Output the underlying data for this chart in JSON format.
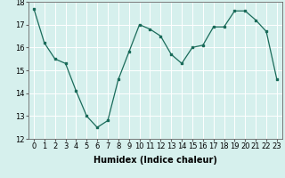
{
  "x": [
    0,
    1,
    2,
    3,
    4,
    5,
    6,
    7,
    8,
    9,
    10,
    11,
    12,
    13,
    14,
    15,
    16,
    17,
    18,
    19,
    20,
    21,
    22,
    23
  ],
  "y": [
    17.7,
    16.2,
    15.5,
    15.3,
    14.1,
    13.0,
    12.5,
    12.8,
    14.6,
    15.8,
    17.0,
    16.8,
    16.5,
    15.7,
    15.3,
    16.0,
    16.1,
    16.9,
    16.9,
    17.6,
    17.6,
    17.2,
    16.7,
    14.6
  ],
  "xlabel": "Humidex (Indice chaleur)",
  "ylim": [
    12,
    18
  ],
  "xlim": [
    -0.5,
    23.5
  ],
  "yticks": [
    12,
    13,
    14,
    15,
    16,
    17,
    18
  ],
  "xticks": [
    0,
    1,
    2,
    3,
    4,
    5,
    6,
    7,
    8,
    9,
    10,
    11,
    12,
    13,
    14,
    15,
    16,
    17,
    18,
    19,
    20,
    21,
    22,
    23
  ],
  "line_color": "#1a6b5a",
  "marker_color": "#1a6b5a",
  "bg_color": "#d6f0ed",
  "grid_color": "#ffffff",
  "xlabel_fontsize": 7,
  "tick_fontsize": 6
}
